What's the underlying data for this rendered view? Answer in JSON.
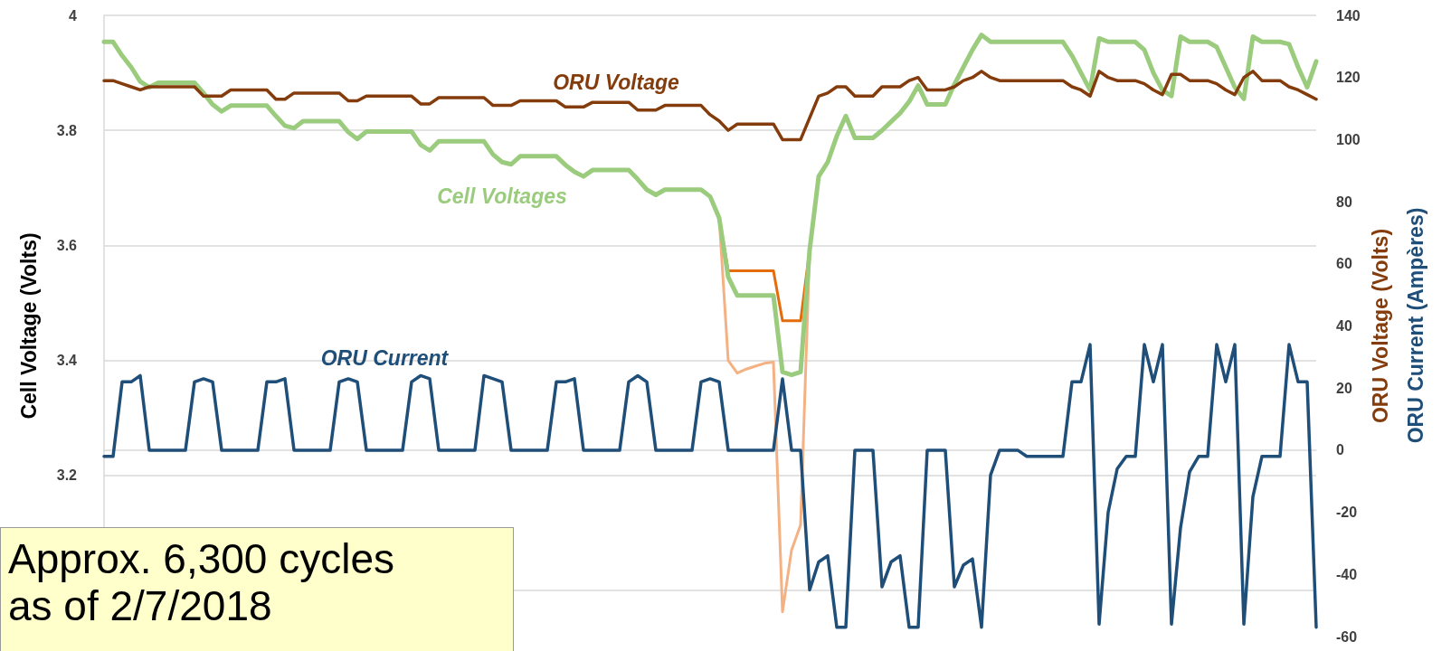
{
  "chart_data": {
    "type": "line",
    "ylabel": "Cell Voltage (Volts)",
    "y2label": "ORU Voltage (Volts)",
    "annotations": [
      "Approx. 6,300 cycles as of 2/7/2018",
      "ORU Current (Ampères)"
    ],
    "categories": [
      null,
      null,
      null,
      null,
      null,
      null,
      null,
      null,
      null,
      null,
      null,
      null,
      null,
      null,
      null,
      null,
      null,
      null,
      null,
      null,
      null,
      null,
      null,
      null,
      null,
      null,
      null,
      null,
      null,
      null,
      null,
      null,
      null,
      null,
      null,
      null,
      null,
      null,
      null,
      null,
      null,
      null,
      null,
      null,
      null,
      null,
      null,
      null,
      null,
      null,
      null,
      null,
      null,
      null,
      null,
      null,
      null,
      null,
      null,
      null,
      null,
      null,
      null,
      null,
      null,
      null,
      null,
      null,
      null,
      null,
      null,
      null,
      null,
      null,
      null,
      null,
      null,
      null,
      null,
      null,
      null,
      null,
      null,
      null,
      null,
      null,
      null,
      null,
      null,
      null,
      null,
      null,
      null,
      null,
      null,
      null,
      null,
      null,
      null,
      null,
      null,
      null,
      null,
      null,
      null,
      null,
      null,
      null,
      null,
      null,
      null,
      null,
      null,
      null,
      null,
      null,
      null,
      null,
      null,
      null,
      null,
      null,
      null,
      null,
      null,
      null,
      null,
      null,
      null,
      null,
      null,
      null,
      null,
      null,
      null
    ],
    "ylim": [
      2.92,
      4
    ],
    "yticks": [
      {
        "value": 3,
        "label": null
      },
      3.2,
      3.4,
      3.6,
      3.8,
      4
    ],
    "y2lim": [
      -60,
      140
    ],
    "y2ticks": [
      -60,
      -40,
      -20,
      0,
      20,
      40,
      60,
      80,
      100,
      120,
      140
    ],
    "grid": "y",
    "legend": false,
    "marker": "none",
    "line_style": "solid",
    "series": [
      {
        "color": "#e46c0a",
        "values": [
          null,
          null,
          null,
          null,
          null,
          null,
          null,
          null,
          null,
          null,
          null,
          null,
          null,
          null,
          null,
          null,
          null,
          null,
          null,
          null,
          null,
          null,
          null,
          null,
          null,
          null,
          null,
          null,
          null,
          null,
          null,
          null,
          null,
          null,
          null,
          null,
          null,
          null,
          null,
          null,
          null,
          null,
          null,
          null,
          null,
          null,
          null,
          null,
          null,
          null,
          null,
          null,
          null,
          null,
          null,
          null,
          null,
          null,
          null,
          null,
          null,
          null,
          null,
          null,
          null,
          null,
          null,
          null,
          3.648,
          3.556,
          3.556,
          3.556,
          3.556,
          3.556,
          3.556,
          3.469,
          3.469,
          3.469,
          3.592,
          null,
          null,
          null,
          null,
          null,
          null,
          null,
          null,
          null,
          null,
          null,
          null,
          null,
          null,
          null,
          null,
          null,
          null,
          null,
          null,
          null,
          null,
          null,
          null,
          null,
          null,
          null,
          null,
          null,
          null,
          null,
          null,
          null,
          null,
          null,
          null,
          null,
          null,
          null,
          null,
          null,
          null,
          null,
          null,
          null,
          null,
          null,
          null,
          null,
          null,
          null,
          null,
          null,
          null,
          null,
          null
        ]
      },
      {
        "color": "#f4b183",
        "values": [
          null,
          null,
          null,
          null,
          null,
          null,
          null,
          null,
          null,
          null,
          null,
          null,
          null,
          null,
          null,
          null,
          null,
          null,
          null,
          null,
          null,
          null,
          null,
          null,
          null,
          null,
          null,
          null,
          null,
          null,
          null,
          null,
          null,
          null,
          null,
          null,
          null,
          null,
          null,
          null,
          null,
          null,
          null,
          null,
          null,
          null,
          null,
          null,
          null,
          null,
          null,
          null,
          null,
          null,
          null,
          null,
          null,
          null,
          null,
          null,
          null,
          null,
          null,
          null,
          null,
          null,
          null,
          null,
          3.648,
          3.4,
          3.378,
          3.385,
          3.39,
          3.395,
          3.397,
          2.963,
          3.07,
          3.114,
          3.592,
          null,
          null,
          null,
          null,
          null,
          null,
          null,
          null,
          null,
          null,
          null,
          null,
          null,
          null,
          null,
          null,
          null,
          null,
          null,
          null,
          null,
          null,
          null,
          null,
          null,
          null,
          null,
          null,
          null,
          null,
          null,
          null,
          null,
          null,
          null,
          null,
          null,
          null,
          null,
          null,
          null,
          null,
          null,
          null,
          null,
          null,
          null,
          null,
          null,
          null,
          null,
          null,
          null,
          null,
          null,
          null
        ]
      },
      {
        "name": "Cell Voltages",
        "color": "#9bcc7e",
        "values": [
          3.954,
          3.954,
          3.93,
          3.91,
          3.885,
          3.875,
          3.883,
          3.883,
          3.883,
          3.883,
          3.883,
          3.865,
          3.845,
          3.833,
          3.843,
          3.843,
          3.843,
          3.843,
          3.843,
          3.825,
          3.808,
          3.804,
          3.816,
          3.816,
          3.816,
          3.816,
          3.816,
          3.797,
          3.785,
          3.798,
          3.798,
          3.798,
          3.798,
          3.798,
          3.798,
          3.775,
          3.765,
          3.781,
          3.781,
          3.781,
          3.781,
          3.781,
          3.781,
          3.758,
          3.745,
          3.741,
          3.755,
          3.755,
          3.755,
          3.755,
          3.755,
          3.74,
          3.728,
          3.72,
          3.731,
          3.731,
          3.731,
          3.731,
          3.731,
          3.715,
          3.697,
          3.688,
          3.697,
          3.697,
          3.697,
          3.697,
          3.697,
          3.685,
          3.648,
          3.545,
          3.513,
          3.513,
          3.513,
          3.513,
          3.513,
          3.38,
          3.375,
          3.38,
          3.592,
          3.72,
          3.745,
          3.79,
          3.825,
          3.787,
          3.787,
          3.787,
          3.8,
          3.815,
          3.83,
          3.85,
          3.878,
          3.845,
          3.845,
          3.845,
          3.88,
          3.91,
          3.94,
          3.966,
          3.954,
          3.954,
          3.954,
          3.954,
          3.954,
          3.954,
          3.954,
          3.954,
          3.954,
          3.93,
          3.9,
          3.87,
          3.96,
          3.954,
          3.954,
          3.954,
          3.954,
          3.94,
          3.9,
          3.87,
          3.86,
          3.963,
          3.954,
          3.954,
          3.954,
          3.945,
          3.91,
          3.875,
          3.855,
          3.963,
          3.954,
          3.954,
          3.954,
          3.95,
          3.91,
          3.875,
          3.92
        ]
      },
      {
        "name": "ORU Voltage",
        "color": "#843c0c",
        "axis": "y2",
        "values": [
          119,
          119,
          118,
          117,
          116,
          117,
          117,
          117,
          117,
          117,
          117,
          114,
          114,
          114,
          116,
          116,
          116,
          116,
          116,
          113,
          113,
          115,
          115,
          115,
          115,
          115,
          115,
          112.5,
          112.5,
          114,
          114,
          114,
          114,
          114,
          114,
          111.5,
          111.5,
          113.5,
          113.5,
          113.5,
          113.5,
          113.5,
          113.5,
          111,
          111,
          111,
          112.5,
          112.5,
          112.5,
          112.5,
          112.5,
          110.5,
          110.5,
          110.5,
          112,
          112,
          112,
          112,
          112,
          109.5,
          109.5,
          109.5,
          111,
          111,
          111,
          111,
          111,
          108,
          106,
          103,
          105,
          105,
          105,
          105,
          105,
          100,
          100,
          100,
          107,
          114,
          115,
          117,
          117,
          114,
          114,
          114,
          117,
          117,
          117,
          119,
          120,
          116,
          116,
          116,
          117,
          119,
          120,
          122,
          120,
          119,
          119,
          119,
          119,
          119,
          119,
          119,
          119,
          117,
          116,
          114,
          122,
          120,
          119,
          119,
          119,
          118,
          116,
          114.5,
          121,
          121,
          119,
          119,
          119,
          118,
          116,
          114.5,
          120,
          122,
          119,
          119,
          119,
          117,
          116,
          114.5,
          113
        ]
      },
      {
        "name": "ORU Current",
        "color": "#1f4e79",
        "axis": "y2",
        "values": [
          -2,
          -2,
          22,
          22,
          24,
          0,
          0,
          0,
          0,
          0,
          22,
          23,
          22,
          0,
          0,
          0,
          0,
          0,
          22,
          22,
          23,
          0,
          0,
          0,
          0,
          0,
          22,
          23,
          22,
          0,
          0,
          0,
          0,
          0,
          22,
          24,
          23,
          0,
          0,
          0,
          0,
          0,
          24,
          23,
          22,
          0,
          0,
          0,
          0,
          0,
          22,
          22,
          23,
          0,
          0,
          0,
          0,
          0,
          22,
          24,
          22,
          0,
          0,
          0,
          0,
          0,
          22,
          23,
          22,
          0,
          0,
          0,
          0,
          0,
          0,
          23,
          0,
          0,
          -45,
          -36,
          -34,
          -57,
          -57,
          0,
          0,
          0,
          -44,
          -36,
          -34,
          -57,
          -57,
          0,
          0,
          0,
          -44,
          -37,
          -35,
          -57,
          -8,
          0,
          0,
          0,
          -2,
          -2,
          -2,
          -2,
          -2,
          22,
          22,
          34,
          -56,
          -20,
          -6,
          -2,
          -2,
          34,
          22,
          34,
          -56,
          -25,
          -7,
          -2,
          -2,
          34,
          22,
          34,
          -56,
          -15,
          -2,
          -2,
          -2,
          34,
          22,
          22,
          -57
        ]
      }
    ]
  }
}
